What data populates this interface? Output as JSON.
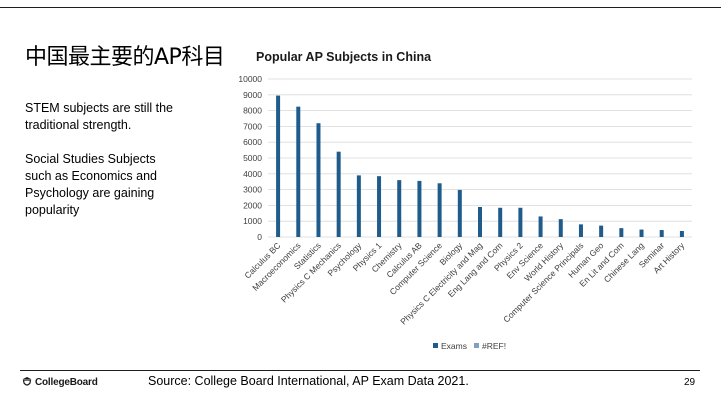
{
  "slide": {
    "title": "中国最主要的AP科目",
    "bullets": [
      "STEM subjects are still the traditional strength.",
      "Social Studies Subjects such as Economics and Psychology are gaining popularity"
    ],
    "source": "Source: College Board International, AP Exam Data 2021.",
    "page_number": "29",
    "logo_text": "CollegeBoard"
  },
  "colors": {
    "bar": "#1f5b8b",
    "legend_ref": "#7fa1bf",
    "grid": "#d9d9d9"
  },
  "chart_data": {
    "type": "bar",
    "title": "Popular AP Subjects in China",
    "xlabel": "",
    "ylabel": "",
    "ylim": [
      0,
      10000
    ],
    "yticks": [
      0,
      1000,
      2000,
      3000,
      4000,
      5000,
      6000,
      7000,
      8000,
      9000,
      10000
    ],
    "grid": true,
    "legend_position": "bottom",
    "legend": [
      "Exams",
      "#REF!"
    ],
    "categories": [
      "Calculus BC",
      "Macroeconomics",
      "Statistics",
      "Physics C Mechanics",
      "Psychology",
      "Physics 1",
      "Chemistry",
      "Calculus AB",
      "Computer Science",
      "Biology",
      "Physics C Electricity and Mag",
      "Eng Lang and Com",
      "Physics 2",
      "Env Science",
      "World History",
      "Computer Science Principals",
      "Human Geo",
      "En Lit and Com",
      "Chinese Lang",
      "Seminar",
      "Art History"
    ],
    "series": [
      {
        "name": "Exams",
        "values": [
          8950,
          8250,
          7200,
          5400,
          3900,
          3850,
          3600,
          3550,
          3400,
          2980,
          1900,
          1850,
          1850,
          1300,
          1130,
          800,
          720,
          560,
          470,
          440,
          380
        ]
      }
    ]
  }
}
